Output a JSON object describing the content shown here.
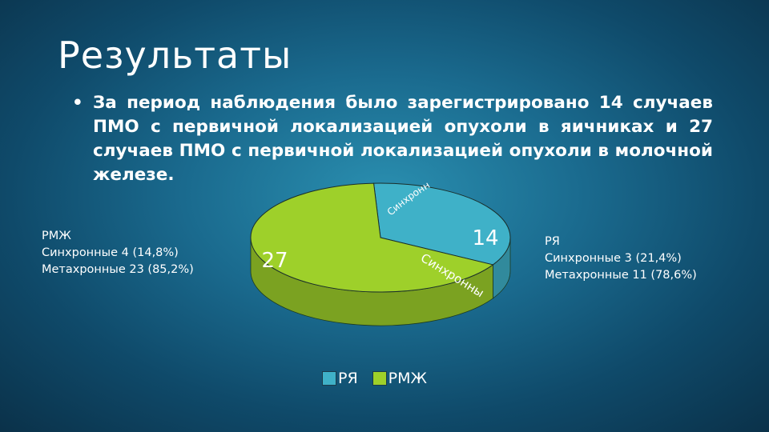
{
  "slide": {
    "title": "Результаты",
    "bullet_mark": "•",
    "bullet_text": "За период наблюдения было зарегистрировано 14 случаев ПМО с первичной локализацией опухоли в яичниках и 27 случаев ПМО с первичной локализацией опухоли в молочной железе."
  },
  "notes": {
    "left": {
      "heading": "РМЖ",
      "line1": "Синхронные  4 (14,8%)",
      "line2": "Метахронные 23 (85,2%)"
    },
    "right": {
      "heading": "РЯ",
      "line1": "Синхронные 3 (21,4%)",
      "line2": "Метахронные 11 (78,6%)"
    }
  },
  "chart_data": {
    "type": "pie",
    "categories": [
      "РЯ",
      "РМЖ"
    ],
    "values": [
      14,
      27
    ],
    "data_labels": [
      "14",
      "27"
    ],
    "colors": {
      "РЯ": "#3fb1c8",
      "РМЖ": "#9ed02a"
    },
    "slice_annotations": [
      "Синхронные",
      "Синхронные"
    ],
    "legend": {
      "position": "bottom",
      "entries": [
        "РЯ",
        "РМЖ"
      ]
    }
  }
}
